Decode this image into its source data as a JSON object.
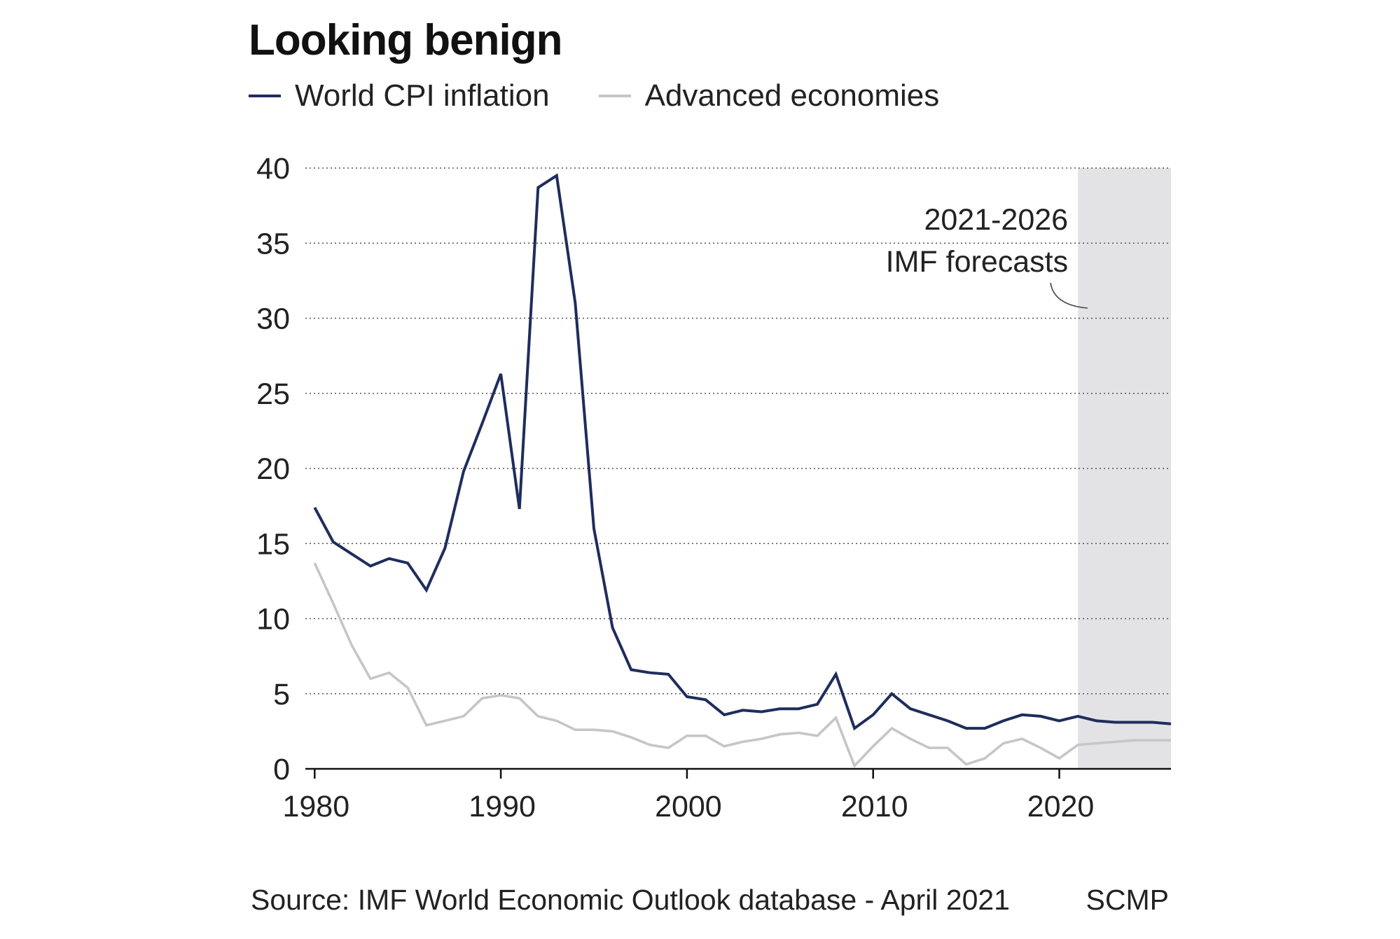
{
  "chart_data": {
    "type": "line",
    "title": "Looking benign",
    "xlabel": "",
    "ylabel": "",
    "xlim": [
      1979.5,
      2026
    ],
    "ylim": [
      0,
      40
    ],
    "x_ticks": [
      1980,
      1990,
      2000,
      2010,
      2020
    ],
    "y_ticks": [
      0,
      5,
      10,
      15,
      20,
      25,
      30,
      35,
      40
    ],
    "grid": "horizontal dotted",
    "legend_position": "top-left",
    "forecast_region": {
      "start": 2021,
      "end": 2026
    },
    "annotation": [
      "2021-2026",
      "IMF forecasts"
    ],
    "x": [
      1980,
      1981,
      1982,
      1983,
      1984,
      1985,
      1986,
      1987,
      1988,
      1989,
      1990,
      1991,
      1992,
      1993,
      1994,
      1995,
      1996,
      1997,
      1998,
      1999,
      2000,
      2001,
      2002,
      2003,
      2004,
      2005,
      2006,
      2007,
      2008,
      2009,
      2010,
      2011,
      2012,
      2013,
      2014,
      2015,
      2016,
      2017,
      2018,
      2019,
      2020,
      2021,
      2022,
      2023,
      2024,
      2025,
      2026
    ],
    "series": [
      {
        "name": "World CPI inflation",
        "color": "#1f2d5c",
        "values": [
          17.4,
          15.1,
          14.3,
          13.5,
          14.0,
          13.7,
          11.9,
          14.7,
          19.8,
          23.0,
          26.3,
          17.3,
          38.7,
          39.5,
          31.0,
          16.0,
          9.4,
          6.6,
          6.4,
          6.3,
          4.8,
          4.6,
          3.6,
          3.9,
          3.8,
          4.0,
          4.0,
          4.3,
          6.3,
          2.7,
          3.6,
          5.0,
          4.0,
          3.6,
          3.2,
          2.7,
          2.7,
          3.2,
          3.6,
          3.5,
          3.2,
          3.5,
          3.2,
          3.1,
          3.1,
          3.1,
          3.0
        ]
      },
      {
        "name": "Advanced economies",
        "color": "#c6c6c6",
        "values": [
          13.7,
          11.0,
          8.2,
          6.0,
          6.4,
          5.4,
          2.9,
          3.2,
          3.5,
          4.7,
          4.9,
          4.7,
          3.5,
          3.2,
          2.6,
          2.6,
          2.5,
          2.1,
          1.6,
          1.4,
          2.2,
          2.2,
          1.5,
          1.8,
          2.0,
          2.3,
          2.4,
          2.2,
          3.4,
          0.2,
          1.5,
          2.7,
          2.0,
          1.4,
          1.4,
          0.3,
          0.7,
          1.7,
          2.0,
          1.4,
          0.7,
          1.6,
          1.7,
          1.8,
          1.9,
          1.9,
          1.9
        ]
      }
    ]
  },
  "source": "Source: IMF World Economic Outlook database - April 2021",
  "brand": "SCMP"
}
